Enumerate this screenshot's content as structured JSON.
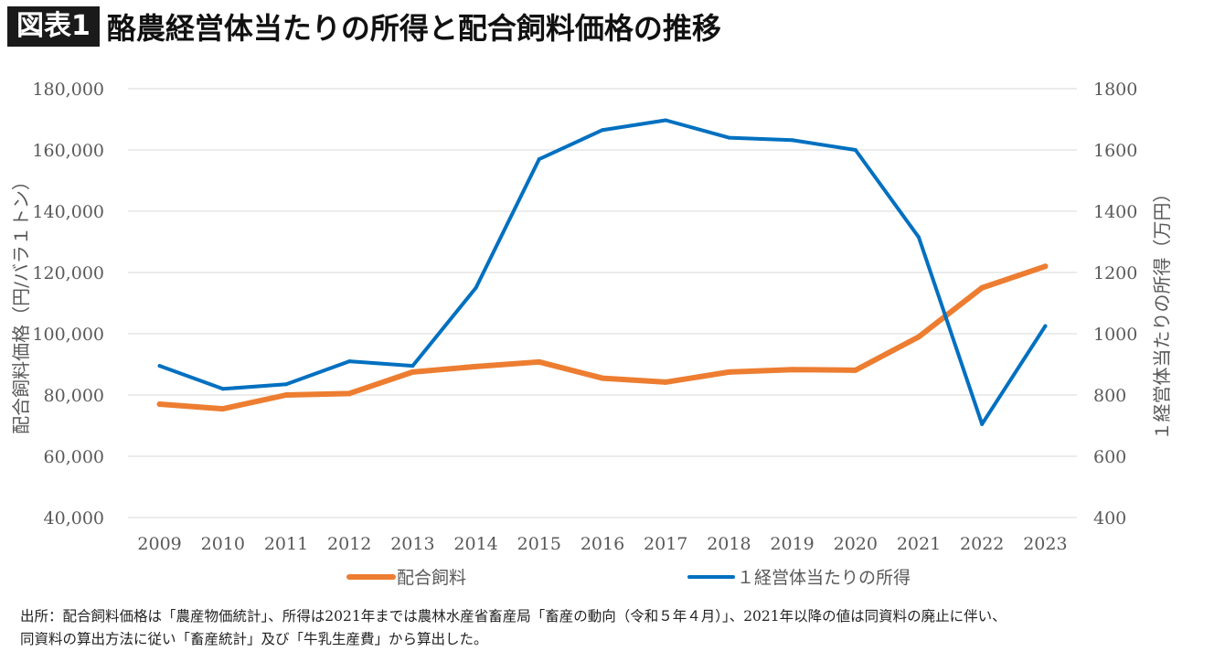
{
  "header": {
    "badge": "図表1",
    "title": "酪農経営体当たりの所得と配合飼料価格の推移"
  },
  "chart_data": {
    "type": "line",
    "categories": [
      "2009",
      "2010",
      "2011",
      "2012",
      "2013",
      "2014",
      "2015",
      "2016",
      "2017",
      "2018",
      "2019",
      "2020",
      "2021",
      "2022",
      "2023"
    ],
    "series": [
      {
        "name": "配合飼料",
        "axis": "left",
        "color": "#ED7D31",
        "values": [
          77000,
          75500,
          80000,
          80500,
          87500,
          89300,
          90800,
          85500,
          84200,
          87500,
          88300,
          88100,
          99000,
          115000,
          122000
        ]
      },
      {
        "name": "1経営体当たりの所得",
        "legend_label": "１経営体当たりの所得",
        "axis": "right",
        "color": "#0070C0",
        "values": [
          895,
          820,
          835,
          910,
          895,
          1150,
          1570,
          1665,
          1697,
          1640,
          1632,
          1600,
          1315,
          705,
          1025
        ]
      }
    ],
    "y_left": {
      "label": "配合飼料価格（円/バラ１トン）",
      "range": [
        40000,
        180000
      ],
      "ticks": [
        "40,000",
        "60,000",
        "80,000",
        "100,000",
        "120,000",
        "140,000",
        "160,000",
        "180,000"
      ]
    },
    "y_right": {
      "label": "１経営体当たりの所得（万円）",
      "range": [
        400,
        1800
      ],
      "ticks": [
        "400",
        "600",
        "800",
        "1000",
        "1200",
        "1400",
        "1600",
        "1800"
      ]
    },
    "grid": true,
    "legend_position": "bottom"
  },
  "footnote": {
    "line1": "出所：配合飼料価格は「農産物価統計」、所得は2021年までは農林水産省畜産局「畜産の動向（令和５年４月）」、2021年以降の値は同資料の廃止に伴い、",
    "line2": "同資料の算出方法に従い「畜産統計」及び「牛乳生産費」から算出した。"
  }
}
